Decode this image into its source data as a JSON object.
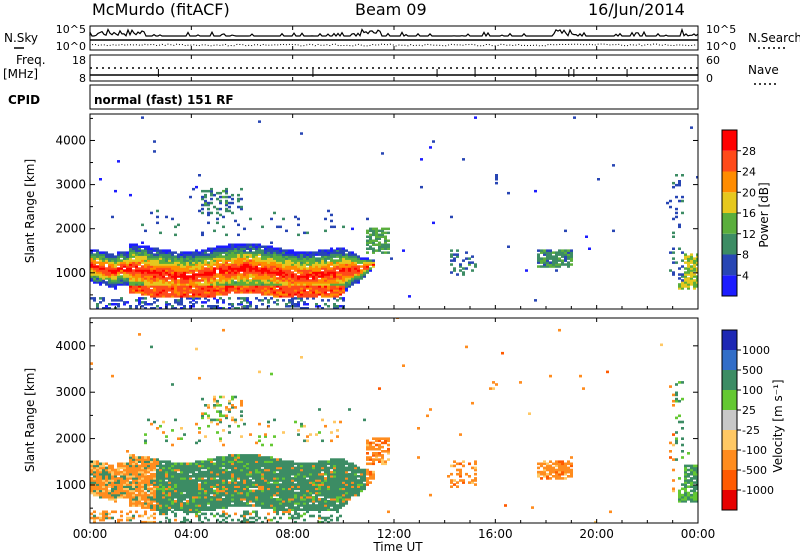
{
  "header": {
    "station": "McMurdo (fitACF)",
    "beam": "Beam 09",
    "date": "16/Jun/2014"
  },
  "side_labels": {
    "nsky": "N.Sky",
    "nsearch": "N.Search",
    "freq": "Freq.",
    "freq_unit": "[MHz]",
    "nave": "Nave",
    "cpid": "CPID"
  },
  "mode_label": "normal (fast) 151 RF",
  "colors": {
    "power_scale": [
      "#1c1cff",
      "#2846b4",
      "#3c8c64",
      "#5aae3c",
      "#e6c81e",
      "#ff8c00",
      "#ff4a1a",
      "#ff0000"
    ],
    "velocity_scale": [
      "#e60000",
      "#ff5a00",
      "#ff8c1e",
      "#ffc864",
      "#c8c8c8",
      "#64c832",
      "#3c8c64",
      "#326ec8",
      "#1e28b4"
    ]
  },
  "chart_data": [
    {
      "type": "line",
      "panel": "noise",
      "left_ticks": [
        "10^5",
        "10^0"
      ],
      "right_ticks": [
        "10^5",
        "10^0"
      ],
      "left_label": "N.Sky",
      "right_label": "N.Search",
      "x_range_hours": [
        0,
        24
      ]
    },
    {
      "type": "scatter",
      "panel": "frequency",
      "left_ticks": [
        "18",
        "8"
      ],
      "right_ticks": [
        "60",
        "0"
      ],
      "left_label": "Freq. [MHz]",
      "right_label": "Nave",
      "x_range_hours": [
        0,
        24
      ]
    },
    {
      "type": "heatmap",
      "panel": "power",
      "ylabel": "Slant Range [km]",
      "ylim": [
        180,
        4600
      ],
      "yticks": [
        "1000",
        "2000",
        "3000",
        "4000"
      ],
      "colorbar_label": "Power [dB]",
      "colorbar_ticks": [
        "4",
        "8",
        "12",
        "16",
        "20",
        "24",
        "28"
      ],
      "x_range_hours": [
        0,
        24
      ]
    },
    {
      "type": "heatmap",
      "panel": "velocity",
      "ylabel": "Slant Range [km]",
      "ylim": [
        180,
        4600
      ],
      "yticks": [
        "1000",
        "2000",
        "3000",
        "4000"
      ],
      "colorbar_label": "Velocity [m s⁻¹]",
      "colorbar_ticks": [
        "1000",
        "500",
        "100",
        "25",
        "-25",
        "-100",
        "-500",
        "-1000"
      ],
      "x_range_hours": [
        0,
        24
      ]
    }
  ],
  "x_axis": {
    "title": "Time UT",
    "ticks": [
      "00:00",
      "04:00",
      "08:00",
      "12:00",
      "16:00",
      "20:00",
      "00:00"
    ]
  }
}
